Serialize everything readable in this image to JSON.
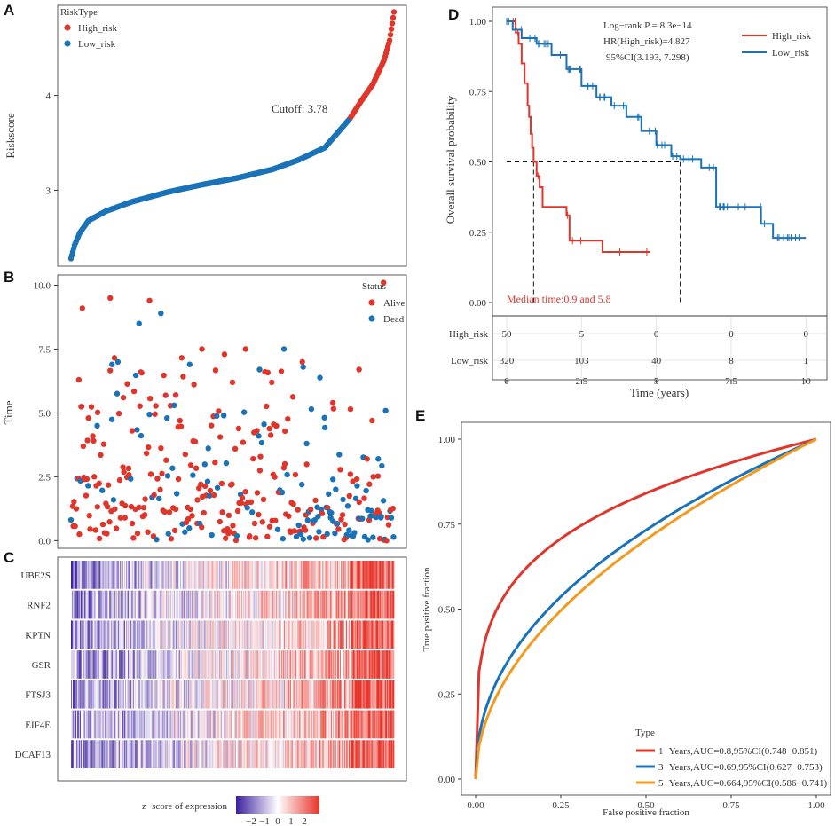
{
  "colors": {
    "high": "#e0352b",
    "low": "#1a73b8",
    "alive": "#e0352b",
    "dead": "#1a73b8",
    "roc1": "#e0352b",
    "roc3": "#1a73b8",
    "roc5": "#f39a1e"
  },
  "panels": {
    "a": "A",
    "b": "B",
    "c": "C",
    "d": "D",
    "e": "E"
  },
  "panelA": {
    "ylabel": "Riskscore",
    "legend_title": "RiskType",
    "legend_items": [
      "High_risk",
      "Low_risk"
    ],
    "cutoff_label": "Cutoff:  3.78",
    "chart_data": {
      "type": "scatter",
      "title": "",
      "ylabel": "Riskscore",
      "ylim": [
        2.2,
        4.95
      ],
      "yticks": [
        3,
        4
      ],
      "n_patients": 370,
      "n_low": 320,
      "cutoff": 3.78,
      "curve_rank_value": [
        [
          0,
          2.28
        ],
        [
          4,
          2.42
        ],
        [
          10,
          2.55
        ],
        [
          20,
          2.68
        ],
        [
          40,
          2.78
        ],
        [
          70,
          2.88
        ],
        [
          110,
          2.98
        ],
        [
          150,
          3.06
        ],
        [
          190,
          3.13
        ],
        [
          230,
          3.22
        ],
        [
          260,
          3.32
        ],
        [
          290,
          3.45
        ],
        [
          319,
          3.76
        ],
        [
          330,
          3.92
        ],
        [
          345,
          4.12
        ],
        [
          358,
          4.38
        ],
        [
          364,
          4.58
        ],
        [
          369,
          4.88
        ]
      ]
    }
  },
  "panelB": {
    "ylabel": "Time",
    "legend_title": "Status",
    "legend_items": [
      "Alive",
      "Dead"
    ],
    "chart_data": {
      "type": "scatter",
      "ylabel": "Time",
      "ylim": [
        -0.3,
        10.4
      ],
      "yticks": [
        "0.0",
        "2.5",
        "5.0",
        "7.5",
        "10.0"
      ],
      "x_range": [
        0,
        370
      ],
      "sample_points_alive": [
        [
          9,
          6.3
        ],
        [
          13,
          9.1
        ],
        [
          45,
          9.5
        ],
        [
          90,
          9.4
        ],
        [
          358,
          10.1
        ],
        [
          80,
          6.6
        ],
        [
          150,
          7.5
        ],
        [
          200,
          7.5
        ],
        [
          265,
          7.0
        ],
        [
          60,
          5.6
        ],
        [
          120,
          5.7
        ],
        [
          185,
          6.2
        ],
        [
          230,
          6.2
        ],
        [
          300,
          5.4
        ],
        [
          330,
          6.7
        ],
        [
          345,
          4.7
        ],
        [
          20,
          4.8
        ],
        [
          70,
          4.3
        ],
        [
          140,
          3.9
        ],
        [
          245,
          3.0
        ],
        [
          320,
          2.6
        ]
      ],
      "sample_points_dead": [
        [
          47,
          6.9
        ],
        [
          78,
          8.5
        ],
        [
          103,
          8.9
        ],
        [
          136,
          6.9
        ],
        [
          216,
          6.7
        ],
        [
          244,
          7.5
        ],
        [
          266,
          6.8
        ],
        [
          352,
          3.2
        ],
        [
          30,
          4.5
        ],
        [
          110,
          4.8
        ],
        [
          175,
          4.9
        ],
        [
          215,
          4.1
        ],
        [
          270,
          3.8
        ],
        [
          300,
          2.4
        ],
        [
          340,
          1.2
        ],
        [
          355,
          0.9
        ]
      ]
    }
  },
  "panelC": {
    "genes": [
      "UBE2S",
      "RNF2",
      "KPTN",
      "GSR",
      "FTSJ3",
      "EIF4E",
      "DCAF13"
    ],
    "colorbar_label": "z−score of expression",
    "colorbar_ticks": [
      "−2",
      "−1",
      "0",
      "1",
      "2"
    ],
    "chart_data": {
      "type": "heatmap",
      "rows": [
        "UBE2S",
        "RNF2",
        "KPTN",
        "GSR",
        "FTSJ3",
        "EIF4E",
        "DCAF13"
      ],
      "columns": "370 patients ordered by riskscore (low to high)",
      "color_scale": {
        "min": -2,
        "max": 2,
        "low": "#3b1fa0",
        "mid": "#ffffff",
        "high": "#e8342a"
      }
    }
  },
  "panelD": {
    "ylabel": "Overall survival probability",
    "xlabel": "Time (years)",
    "stat_lines": [
      "Log−rank P = 8.3e−14",
      "HR(High_risk)=4.827",
      "95%CI(3.193, 7.298)"
    ],
    "legend_items": [
      "High_risk",
      "Low_risk"
    ],
    "median_label": "Median time:0.9 and 5.8",
    "yticks": [
      "0.00",
      "0.25",
      "0.50",
      "0.75",
      "1.00"
    ],
    "xticks": [
      "0",
      "2.5",
      "5",
      "7.5",
      "10"
    ],
    "risk_table": {
      "rows": [
        {
          "label": "High_risk",
          "values": [
            "50",
            "5",
            "0",
            "0",
            "0"
          ]
        },
        {
          "label": "Low_risk",
          "values": [
            "320",
            "103",
            "40",
            "8",
            "1"
          ]
        }
      ]
    },
    "chart_data": {
      "type": "line",
      "xlabel": "Time (years)",
      "ylabel": "Overall survival probability",
      "xlim": [
        0,
        10.2
      ],
      "ylim": [
        0,
        1
      ],
      "median_survival": [
        0.9,
        5.8
      ],
      "series": [
        {
          "name": "High_risk",
          "x": [
            0,
            0.3,
            0.4,
            0.5,
            0.6,
            0.7,
            0.75,
            0.8,
            0.85,
            0.9,
            1.0,
            1.1,
            1.2,
            2.0,
            2.1,
            3.2,
            4.8
          ],
          "y": [
            1.0,
            0.96,
            0.92,
            0.85,
            0.78,
            0.7,
            0.66,
            0.6,
            0.55,
            0.5,
            0.45,
            0.41,
            0.34,
            0.31,
            0.22,
            0.18,
            0.18
          ]
        },
        {
          "name": "Low_risk",
          "x": [
            0,
            0.2,
            0.5,
            1.0,
            1.5,
            2.0,
            2.5,
            3.0,
            3.5,
            4.0,
            4.5,
            5.0,
            5.5,
            5.8,
            6.5,
            6.9,
            7.0,
            7.5,
            8.0,
            8.5,
            8.8,
            8.9,
            10.0
          ],
          "y": [
            1.0,
            0.97,
            0.94,
            0.92,
            0.88,
            0.83,
            0.77,
            0.73,
            0.7,
            0.66,
            0.61,
            0.56,
            0.52,
            0.51,
            0.48,
            0.48,
            0.34,
            0.34,
            0.34,
            0.28,
            0.28,
            0.23,
            0.23
          ]
        }
      ]
    }
  },
  "panelE": {
    "xlabel": "False positive fraction",
    "ylabel": "True positive fraction",
    "legend_title": "Type",
    "legend_items": [
      "1−Years,AUC=0.8,95%CI(0.748−0.851)",
      "3−Years,AUC=0.69,95%CI(0.627−0.753)",
      "5−Years,AUC=0.664,95%CI(0.586−0.741)"
    ],
    "ticks": [
      "0.00",
      "0.25",
      "0.50",
      "0.75",
      "1.00"
    ],
    "chart_data": {
      "type": "line",
      "xlabel": "False positive fraction",
      "ylabel": "True positive fraction",
      "xlim": [
        0,
        1
      ],
      "ylim": [
        0,
        1
      ],
      "series": [
        {
          "name": "1−Years",
          "auc": 0.8,
          "ci": [
            0.748,
            0.851
          ]
        },
        {
          "name": "3−Years",
          "auc": 0.69,
          "ci": [
            0.627,
            0.753
          ]
        },
        {
          "name": "5−Years",
          "auc": 0.664,
          "ci": [
            0.586,
            0.741
          ]
        }
      ]
    }
  }
}
